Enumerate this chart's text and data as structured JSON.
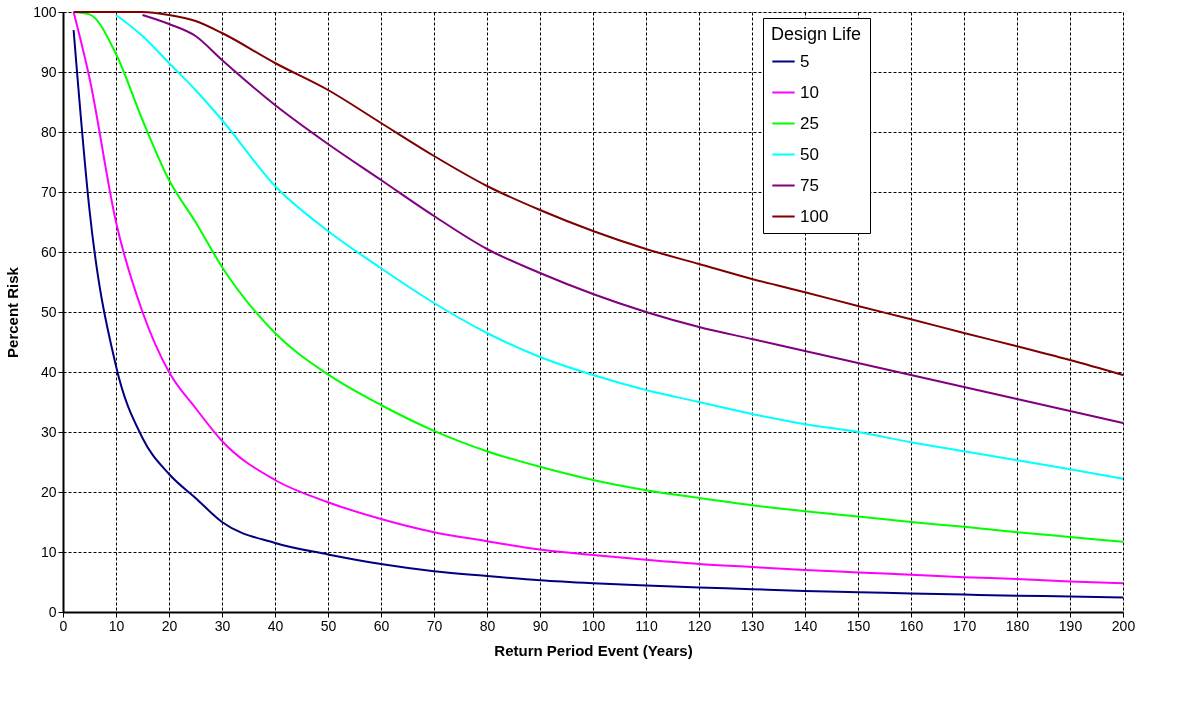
{
  "chart_data": {
    "type": "line",
    "xlabel": "Return Period Event (Years)",
    "ylabel": "Percent Risk",
    "legend_title": "Design Life",
    "x": [
      2,
      5,
      10,
      15,
      20,
      25,
      30,
      40,
      50,
      60,
      70,
      80,
      90,
      100,
      110,
      120,
      130,
      140,
      150,
      160,
      170,
      180,
      190,
      200
    ],
    "series": [
      {
        "name": "5",
        "color": "#000080",
        "values": [
          97,
          67,
          41,
          29,
          23,
          19,
          15,
          11.5,
          9.6,
          8,
          6.8,
          6,
          5.3,
          4.8,
          4.4,
          4.1,
          3.8,
          3.5,
          3.3,
          3.1,
          2.9,
          2.7,
          2.6,
          2.4
        ]
      },
      {
        "name": "10",
        "color": "#ff00ff",
        "values": [
          100,
          89,
          65,
          50,
          40,
          34,
          28.5,
          22,
          18.3,
          15.5,
          13.3,
          11.8,
          10.4,
          9.5,
          8.7,
          8,
          7.5,
          7,
          6.6,
          6.2,
          5.8,
          5.5,
          5.1,
          4.8
        ]
      },
      {
        "name": "25",
        "color": "#00ff00",
        "values": [
          100,
          99.6,
          93,
          82,
          72,
          65,
          57.5,
          46.5,
          39.6,
          34.5,
          30.2,
          26.8,
          24.2,
          22,
          20.3,
          19,
          17.8,
          16.8,
          15.9,
          15,
          14.2,
          13.3,
          12.5,
          11.7
        ]
      },
      {
        "name": "50",
        "color": "#00ffff",
        "values": [
          null,
          null,
          99.5,
          96,
          91.5,
          87,
          82,
          71,
          63.5,
          57.3,
          51.5,
          46.5,
          42.5,
          39.5,
          37,
          35,
          33,
          31.3,
          30,
          28.3,
          26.8,
          25.3,
          23.8,
          22.2
        ]
      },
      {
        "name": "75",
        "color": "#800080",
        "values": [
          null,
          null,
          null,
          99.5,
          98,
          96,
          92,
          84.5,
          78,
          72,
          66,
          60.5,
          56.5,
          53,
          50,
          47.5,
          45.5,
          43.5,
          41.5,
          39.5,
          37.5,
          35.5,
          33.5,
          31.5
        ]
      },
      {
        "name": "100",
        "color": "#800000",
        "values": [
          100,
          100,
          100,
          100,
          99.5,
          98.5,
          96.5,
          91.5,
          87,
          81.5,
          76,
          71,
          67,
          63.5,
          60.5,
          58,
          55.5,
          53.3,
          51,
          48.8,
          46.5,
          44.3,
          42,
          39.5
        ]
      }
    ],
    "xlim": [
      0,
      200
    ],
    "xticks": [
      0,
      10,
      20,
      30,
      40,
      50,
      60,
      70,
      80,
      90,
      100,
      110,
      120,
      130,
      140,
      150,
      160,
      170,
      180,
      190,
      200
    ],
    "ylim": [
      0,
      100
    ],
    "yticks": [
      0,
      10,
      20,
      30,
      40,
      50,
      60,
      70,
      80,
      90,
      100
    ],
    "grid": true,
    "legend": "top right",
    "marker": "none",
    "line_style": "solid"
  }
}
